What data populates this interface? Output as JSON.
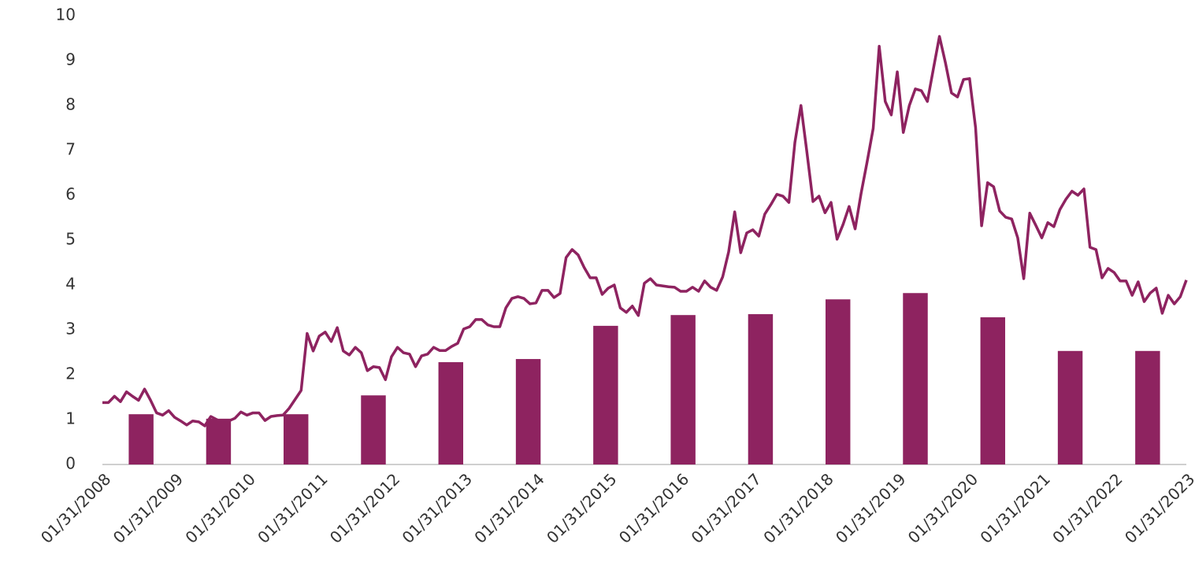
{
  "chart_data": {
    "type": "combo",
    "x": [
      "2008-01",
      "2008-02",
      "2008-03",
      "2008-04",
      "2008-05",
      "2008-06",
      "2008-07",
      "2008-08",
      "2008-09",
      "2008-10",
      "2008-11",
      "2008-12",
      "2009-01",
      "2009-02",
      "2009-03",
      "2009-04",
      "2009-05",
      "2009-06",
      "2009-07",
      "2009-08",
      "2009-09",
      "2009-10",
      "2009-11",
      "2009-12",
      "2010-01",
      "2010-02",
      "2010-03",
      "2010-04",
      "2010-05",
      "2010-06",
      "2010-07",
      "2010-08",
      "2010-09",
      "2010-10",
      "2010-11",
      "2010-12",
      "2011-01",
      "2011-02",
      "2011-03",
      "2011-04",
      "2011-05",
      "2011-06",
      "2011-07",
      "2011-08",
      "2011-09",
      "2011-10",
      "2011-11",
      "2011-12",
      "2012-01",
      "2012-02",
      "2012-03",
      "2012-04",
      "2012-05",
      "2012-06",
      "2012-07",
      "2012-08",
      "2012-09",
      "2012-10",
      "2012-11",
      "2012-12",
      "2013-01",
      "2013-02",
      "2013-03",
      "2013-04",
      "2013-05",
      "2013-06",
      "2013-07",
      "2013-08",
      "2013-09",
      "2013-10",
      "2013-11",
      "2013-12",
      "2014-01",
      "2014-02",
      "2014-03",
      "2014-04",
      "2014-05",
      "2014-06",
      "2014-07",
      "2014-08",
      "2014-09",
      "2014-10",
      "2014-11",
      "2014-12",
      "2015-01",
      "2015-02",
      "2015-03",
      "2015-04",
      "2015-05",
      "2015-06",
      "2015-07",
      "2015-08",
      "2015-09",
      "2015-10",
      "2015-11",
      "2015-12",
      "2016-01",
      "2016-02",
      "2016-03",
      "2016-04",
      "2016-05",
      "2016-06",
      "2016-07",
      "2016-08",
      "2016-09",
      "2016-10",
      "2016-11",
      "2016-12",
      "2017-01",
      "2017-02",
      "2017-03",
      "2017-04",
      "2017-05",
      "2017-06",
      "2017-07",
      "2017-08",
      "2017-09",
      "2017-10",
      "2017-11",
      "2017-12",
      "2018-01",
      "2018-02",
      "2018-03",
      "2018-04",
      "2018-05",
      "2018-06",
      "2018-07",
      "2018-08",
      "2018-09",
      "2018-10",
      "2018-11",
      "2018-12",
      "2019-01",
      "2019-02",
      "2019-03",
      "2019-04",
      "2019-05",
      "2019-06",
      "2019-07",
      "2019-08",
      "2019-09",
      "2019-10",
      "2019-11",
      "2019-12",
      "2020-01",
      "2020-02",
      "2020-03",
      "2020-04",
      "2020-05",
      "2020-06",
      "2020-07",
      "2020-08",
      "2020-09",
      "2020-10",
      "2020-11",
      "2020-12",
      "2021-01",
      "2021-02",
      "2021-03",
      "2021-04",
      "2021-05",
      "2021-06",
      "2021-07",
      "2021-08",
      "2021-09",
      "2021-10",
      "2021-11",
      "2021-12",
      "2022-01",
      "2022-02",
      "2022-03",
      "2022-04",
      "2022-05",
      "2022-06",
      "2022-07",
      "2022-08",
      "2022-09",
      "2022-10",
      "2022-11",
      "2022-12",
      "2023-01"
    ],
    "categories": [
      null,
      null,
      null,
      null,
      null,
      null,
      null,
      null,
      null,
      null,
      null,
      null,
      null,
      null
    ],
    "series": [
      {
        "type": "line",
        "color": "#8e2360",
        "values": [
          1.38,
          1.38,
          1.52,
          1.4,
          1.62,
          1.52,
          1.43,
          1.68,
          1.43,
          1.15,
          1.1,
          1.2,
          1.05,
          0.97,
          0.88,
          0.97,
          0.95,
          0.86,
          1.07,
          1.0,
          0.93,
          0.97,
          1.03,
          1.17,
          1.1,
          1.15,
          1.15,
          0.98,
          1.07,
          1.09,
          1.1,
          1.25,
          1.45,
          1.65,
          2.92,
          2.53,
          2.86,
          2.95,
          2.74,
          3.05,
          2.53,
          2.44,
          2.61,
          2.49,
          2.09,
          2.18,
          2.16,
          1.89,
          2.4,
          2.61,
          2.49,
          2.46,
          2.18,
          2.42,
          2.46,
          2.61,
          2.54,
          2.54,
          2.63,
          2.7,
          3.02,
          3.07,
          3.23,
          3.23,
          3.11,
          3.07,
          3.07,
          3.49,
          3.7,
          3.74,
          3.7,
          3.58,
          3.6,
          3.88,
          3.88,
          3.72,
          3.81,
          4.61,
          4.79,
          4.67,
          4.39,
          4.16,
          4.16,
          3.79,
          3.93,
          4.0,
          3.49,
          3.39,
          3.53,
          3.32,
          4.04,
          4.14,
          4.0,
          3.98,
          3.96,
          3.95,
          3.86,
          3.86,
          3.95,
          3.86,
          4.09,
          3.95,
          3.88,
          4.18,
          4.74,
          5.63,
          4.72,
          5.16,
          5.23,
          5.09,
          5.58,
          5.79,
          6.02,
          5.98,
          5.84,
          7.18,
          8.0,
          6.95,
          5.86,
          5.98,
          5.61,
          5.84,
          5.02,
          5.35,
          5.75,
          5.25,
          6.05,
          6.75,
          7.49,
          9.32,
          8.09,
          7.79,
          8.75,
          7.4,
          8.0,
          8.37,
          8.33,
          8.09,
          8.82,
          9.54,
          8.95,
          8.28,
          8.19,
          8.58,
          8.6,
          7.51,
          5.32,
          6.28,
          6.19,
          5.65,
          5.51,
          5.47,
          5.05,
          4.14,
          5.6,
          5.33,
          5.05,
          5.39,
          5.3,
          5.68,
          5.91,
          6.09,
          6.0,
          6.14,
          4.84,
          4.79,
          4.16,
          4.37,
          4.28,
          4.09,
          4.09,
          3.77,
          4.07,
          3.63,
          3.82,
          3.93,
          3.37,
          3.77,
          3.58,
          3.74,
          4.11
        ]
      },
      {
        "type": "bar",
        "color": "#8e2360",
        "values": [
          1.12,
          1.02,
          1.12,
          1.54,
          2.28,
          2.35,
          3.09,
          3.33,
          3.35,
          3.68,
          3.82,
          3.28,
          2.53,
          2.53
        ]
      }
    ],
    "ylim": [
      0,
      10
    ],
    "yticks": [
      0,
      1,
      2,
      3,
      4,
      5,
      6,
      7,
      8,
      9,
      10
    ],
    "xticks": [
      {
        "value": "2008-01",
        "label": "01/31/2008"
      },
      {
        "value": "2009-01",
        "label": "01/31/2009"
      },
      {
        "value": "2010-01",
        "label": "01/31/2010"
      },
      {
        "value": "2011-01",
        "label": "01/31/2011"
      },
      {
        "value": "2012-01",
        "label": "01/31/2012"
      },
      {
        "value": "2013-01",
        "label": "01/31/2013"
      },
      {
        "value": "2014-01",
        "label": "01/31/2014"
      },
      {
        "value": "2015-01",
        "label": "01/31/2015"
      },
      {
        "value": "2016-01",
        "label": "01/31/2016"
      },
      {
        "value": "2017-01",
        "label": "01/31/2017"
      },
      {
        "value": "2018-01",
        "label": "01/31/2018"
      },
      {
        "value": "2019-01",
        "label": "01/31/2019"
      },
      {
        "value": "2020-01",
        "label": "01/31/2020"
      },
      {
        "value": "2021-01",
        "label": "01/31/2021"
      },
      {
        "value": "2022-01",
        "label": "01/31/2022"
      },
      {
        "value": "2023-01",
        "label": "01/31/2023"
      }
    ],
    "grid": false
  }
}
